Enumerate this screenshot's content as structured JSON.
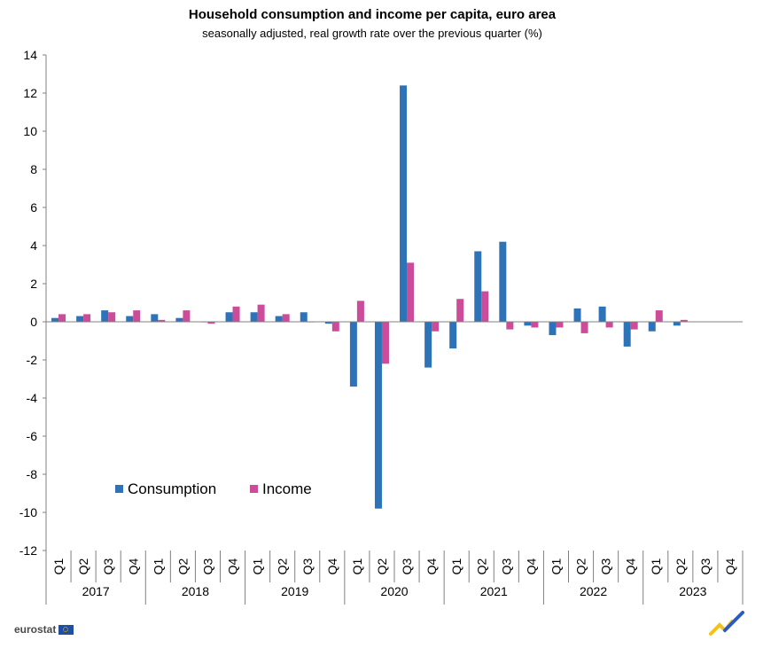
{
  "title": "Household consumption and income per capita, euro area",
  "subtitle": "seasonally adjusted, real growth rate over the previous quarter (%)",
  "brand": "eurostat",
  "colors": {
    "consumption": "#2E73B8",
    "income": "#CC4C9A",
    "axis": "#808080"
  },
  "chart_data": {
    "type": "bar",
    "ylim": [
      -12,
      14
    ],
    "yticks": [
      -12,
      -10,
      -8,
      -6,
      -4,
      -2,
      0,
      2,
      4,
      6,
      8,
      10,
      12,
      14
    ],
    "legend_position": "lower-left inside",
    "years": [
      "2017",
      "2018",
      "2019",
      "2020",
      "2021",
      "2022",
      "2023"
    ],
    "quarters": [
      "Q1",
      "Q2",
      "Q3",
      "Q4"
    ],
    "series": [
      {
        "name": "Consumption",
        "values": [
          0.2,
          0.3,
          0.6,
          0.3,
          0.4,
          0.2,
          0.0,
          0.5,
          0.5,
          0.3,
          0.5,
          -0.1,
          -3.4,
          -9.8,
          12.4,
          -2.4,
          -1.4,
          3.7,
          4.2,
          -0.2,
          -0.7,
          0.7,
          0.8,
          -1.3,
          -0.5,
          -0.2,
          null,
          null
        ]
      },
      {
        "name": "Income",
        "values": [
          0.4,
          0.4,
          0.5,
          0.6,
          0.1,
          0.6,
          -0.1,
          0.8,
          0.9,
          0.4,
          0.0,
          -0.5,
          1.1,
          -2.2,
          3.1,
          -0.5,
          1.2,
          1.6,
          -0.4,
          -0.3,
          -0.3,
          -0.6,
          -0.3,
          -0.4,
          0.6,
          0.1,
          null,
          null
        ]
      }
    ]
  }
}
